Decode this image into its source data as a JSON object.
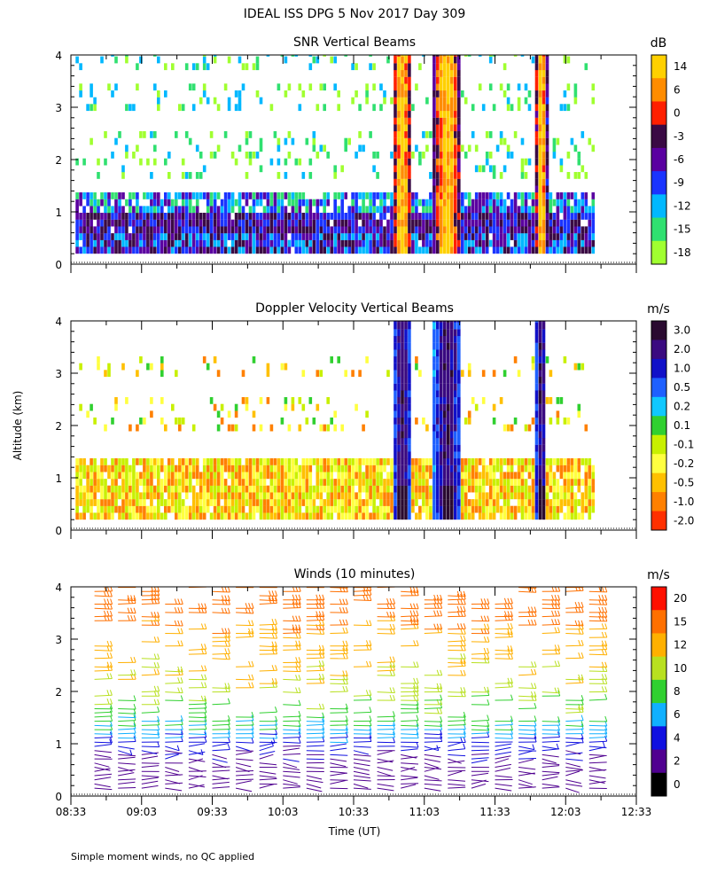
{
  "figure_title": "IDEAL ISS DPG    5 Nov 2017 Day 309",
  "y_axis_label": "Altitude (km)",
  "x_axis_label": "Time (UT)",
  "footnote": "Simple moment winds, no QC applied",
  "x_ticks": [
    "08:33",
    "09:03",
    "09:33",
    "10:03",
    "10:33",
    "11:03",
    "11:33",
    "12:03",
    "12:33"
  ],
  "y_ticks": [
    "0",
    "1",
    "2",
    "3",
    "4"
  ],
  "chart_data": [
    {
      "type": "heatmap",
      "title": "SNR Vertical Beams",
      "xlabel": "",
      "ylabel": "Altitude (km)",
      "xlim": [
        "08:33",
        "12:33"
      ],
      "ylim": [
        0,
        4
      ],
      "colorbar": {
        "unit": "dB",
        "labels": [
          "14",
          "6",
          "0",
          "-3",
          "-6",
          "-9",
          "-12",
          "-15",
          "-18"
        ],
        "colors": [
          "#ffd000",
          "#ff8c00",
          "#ff2000",
          "#3a0a44",
          "#5a00a0",
          "#1a34ff",
          "#00b8ff",
          "#30e070",
          "#a0ff30"
        ]
      },
      "features": [
        {
          "desc": "strong boundary layer echo",
          "altitude_km": [
            0.2,
            1.3
          ],
          "time": [
            "08:35",
            "12:15"
          ]
        },
        {
          "desc": "convective plume",
          "time": "10:55",
          "altitude_km": [
            0.2,
            4.0
          ],
          "max_dB": 14
        },
        {
          "desc": "convective plume",
          "time": "11:12",
          "altitude_km": [
            0.2,
            4.0
          ],
          "max_dB": 14
        },
        {
          "desc": "convective plume",
          "time": "11:50",
          "altitude_km": [
            0.2,
            4.0
          ],
          "max_dB": 6
        }
      ]
    },
    {
      "type": "heatmap",
      "title": "Doppler Velocity Vertical Beams",
      "xlabel": "",
      "ylabel": "Altitude (km)",
      "xlim": [
        "08:33",
        "12:33"
      ],
      "ylim": [
        0,
        4
      ],
      "colorbar": {
        "unit": "m/s",
        "labels": [
          "3.0",
          "2.0",
          "1.0",
          "0.5",
          "0.2",
          "0.1",
          "-0.1",
          "-0.2",
          "-0.5",
          "-1.0",
          "-2.0"
        ],
        "colors": [
          "#2a0a30",
          "#3a0a80",
          "#1010c8",
          "#1e60ff",
          "#10c8ff",
          "#30d030",
          "#c8f000",
          "#ffff40",
          "#ffc000",
          "#ff8000",
          "#ff3000"
        ]
      },
      "features": [
        {
          "desc": "near-zero velocities in boundary layer",
          "altitude_km": [
            0.2,
            1.4
          ],
          "time": [
            "08:35",
            "12:15"
          ]
        },
        {
          "desc": "strong updraft",
          "time": "11:10",
          "altitude_km": [
            0.2,
            3.9
          ],
          "max_ms": 3.0
        }
      ]
    },
    {
      "type": "scatter",
      "title": "Winds (10 minutes)",
      "xlabel": "Time (UT)",
      "ylabel": "Altitude (km)",
      "xlim": [
        "08:33",
        "12:33"
      ],
      "ylim": [
        0,
        4
      ],
      "mark": "wind barb",
      "colorbar": {
        "unit": "m/s",
        "labels": [
          "20",
          "15",
          "12",
          "10",
          "8",
          "6",
          "4",
          "2",
          "0"
        ],
        "colors": [
          "#ff1000",
          "#ff7000",
          "#ffb000",
          "#b8e020",
          "#30d030",
          "#10b0ff",
          "#1010e0",
          "#500090",
          "#000000"
        ]
      },
      "profile_times": [
        "08:43",
        "08:53",
        "09:03",
        "09:13",
        "09:23",
        "09:33",
        "09:43",
        "09:53",
        "10:03",
        "10:13",
        "10:23",
        "10:33",
        "10:43",
        "10:53",
        "11:03",
        "11:13",
        "11:23",
        "11:33",
        "11:43",
        "11:53",
        "12:03",
        "12:13"
      ],
      "speed_profile_ms": [
        {
          "altitude_km": 0.3,
          "speed": 3
        },
        {
          "altitude_km": 0.6,
          "speed": 3
        },
        {
          "altitude_km": 1.0,
          "speed": 5
        },
        {
          "altitude_km": 1.3,
          "speed": 8
        },
        {
          "altitude_km": 2.0,
          "speed": 11
        },
        {
          "altitude_km": 3.0,
          "speed": 14
        },
        {
          "altitude_km": 3.9,
          "speed": 18
        }
      ]
    }
  ]
}
